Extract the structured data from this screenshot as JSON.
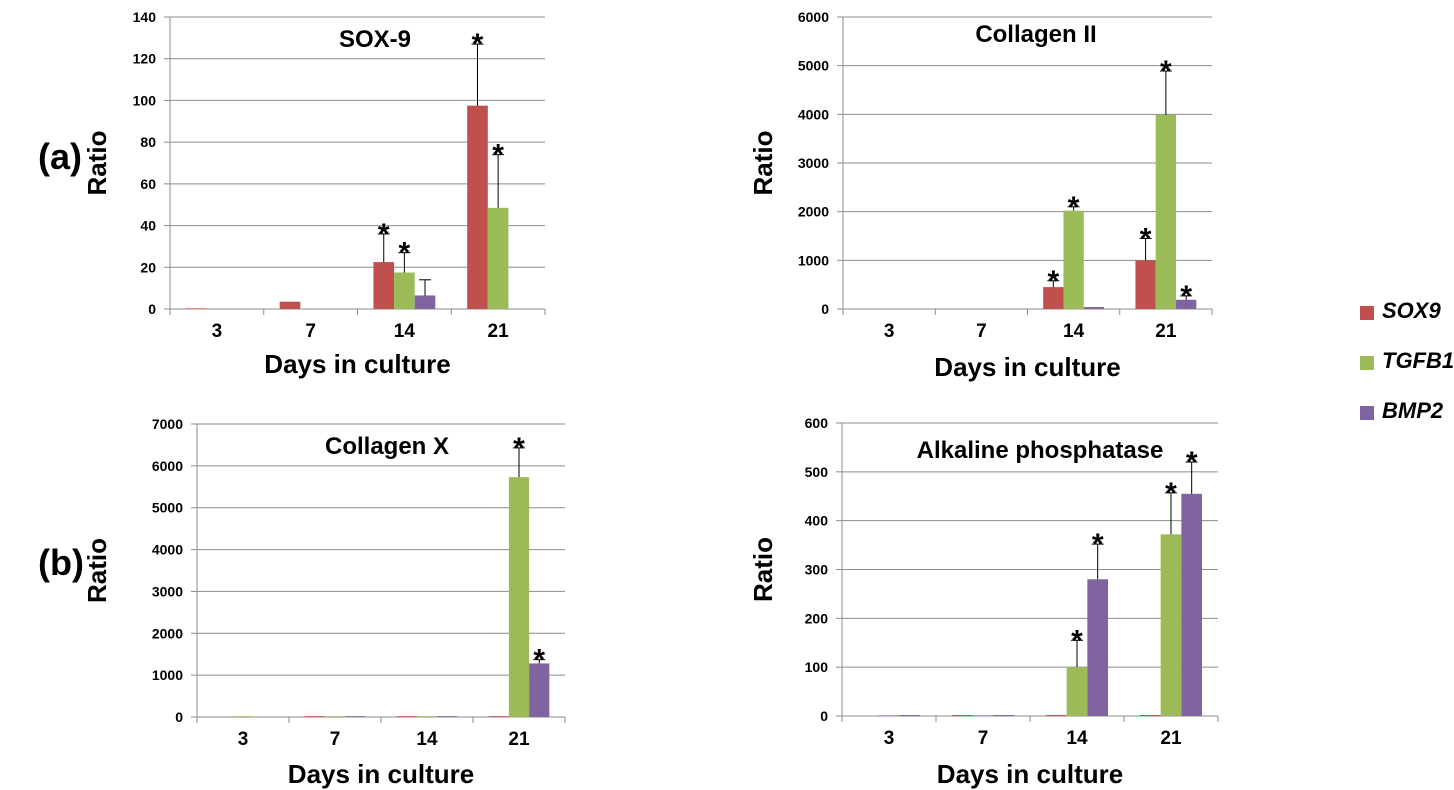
{
  "panel_labels": [
    "(a)",
    "(b)"
  ],
  "legend": [
    {
      "name": "SOX9",
      "color": "#c0504d"
    },
    {
      "name": "TGFB1",
      "color": "#9bbb59"
    },
    {
      "name": "BMP2",
      "color": "#8064a2"
    }
  ],
  "chart_data": [
    {
      "type": "bar",
      "title": "SOX-9",
      "xlabel": "Days in culture",
      "ylabel": "Ratio",
      "categories": [
        "3",
        "7",
        "14",
        "21"
      ],
      "ylim": [
        0,
        140
      ],
      "yticks": [
        0,
        20,
        40,
        60,
        80,
        100,
        120,
        140
      ],
      "grid": true,
      "series": [
        {
          "name": "SOX9",
          "values": [
            0.3,
            3.5,
            22.5,
            97.5
          ],
          "errors": [
            0,
            0,
            13.5,
            29.5
          ],
          "significant": [
            false,
            false,
            true,
            true
          ]
        },
        {
          "name": "TGFB1",
          "values": [
            0,
            0,
            17.5,
            48.5
          ],
          "errors": [
            0,
            0,
            9.5,
            25.5
          ],
          "significant": [
            false,
            false,
            true,
            true
          ]
        },
        {
          "name": "BMP2",
          "values": [
            0,
            0,
            6.5,
            0
          ],
          "errors": [
            0,
            0,
            7.5,
            0
          ],
          "significant": [
            false,
            false,
            false,
            false
          ]
        }
      ]
    },
    {
      "type": "bar",
      "title": "Collagen II",
      "xlabel": "Days in culture",
      "ylabel": "Ratio",
      "categories": [
        "3",
        "7",
        "14",
        "21"
      ],
      "ylim": [
        0,
        6000
      ],
      "yticks": [
        0,
        1000,
        2000,
        3000,
        4000,
        5000,
        6000
      ],
      "grid": true,
      "series": [
        {
          "name": "SOX9",
          "values": [
            0,
            0,
            450,
            1000
          ],
          "errors": [
            0,
            0,
            130,
            450
          ],
          "significant": [
            false,
            false,
            true,
            true
          ]
        },
        {
          "name": "TGFB1",
          "values": [
            0,
            0,
            2020,
            3990
          ],
          "errors": [
            0,
            0,
            80,
            900
          ],
          "significant": [
            false,
            false,
            true,
            true
          ]
        },
        {
          "name": "BMP2",
          "values": [
            0,
            0,
            40,
            190
          ],
          "errors": [
            0,
            0,
            0,
            80
          ],
          "significant": [
            false,
            false,
            false,
            true
          ]
        }
      ]
    },
    {
      "type": "bar",
      "title": "Collagen X",
      "xlabel": "Days in culture",
      "ylabel": "Ratio",
      "categories": [
        "3",
        "7",
        "14",
        "21"
      ],
      "ylim": [
        0,
        7000
      ],
      "yticks": [
        0,
        1000,
        2000,
        3000,
        4000,
        5000,
        6000,
        7000
      ],
      "grid": true,
      "series": [
        {
          "name": "SOX9",
          "values": [
            0,
            20,
            20,
            20
          ],
          "errors": [
            0,
            0,
            0,
            0
          ],
          "significant": [
            false,
            false,
            false,
            false
          ]
        },
        {
          "name": "TGFB1",
          "values": [
            20,
            20,
            20,
            5730
          ],
          "errors": [
            0,
            0,
            0,
            700
          ],
          "significant": [
            false,
            false,
            false,
            true
          ]
        },
        {
          "name": "BMP2",
          "values": [
            0,
            20,
            20,
            1280
          ],
          "errors": [
            0,
            0,
            0,
            90
          ],
          "significant": [
            false,
            false,
            false,
            true
          ]
        }
      ]
    },
    {
      "type": "bar",
      "title": "Alkaline phosphatase",
      "xlabel": "Days in culture",
      "ylabel": "Ratio",
      "categories": [
        "3",
        "7",
        "14",
        "21"
      ],
      "ylim": [
        0,
        600
      ],
      "yticks": [
        0,
        100,
        200,
        300,
        400,
        500,
        600
      ],
      "grid": true,
      "series": [
        {
          "name": "SOX9",
          "values": [
            0,
            2,
            2,
            2
          ],
          "errors": [
            0,
            0,
            0,
            0
          ],
          "significant": [
            false,
            false,
            false,
            false
          ]
        },
        {
          "name": "TGFB1",
          "values": [
            2,
            2,
            100,
            372
          ],
          "errors": [
            0,
            0,
            55,
            85
          ],
          "significant": [
            false,
            false,
            true,
            true
          ]
        },
        {
          "name": "BMP2",
          "values": [
            2,
            2,
            280,
            455
          ],
          "errors": [
            0,
            0,
            72,
            65
          ],
          "significant": [
            false,
            false,
            true,
            true
          ]
        }
      ]
    }
  ]
}
